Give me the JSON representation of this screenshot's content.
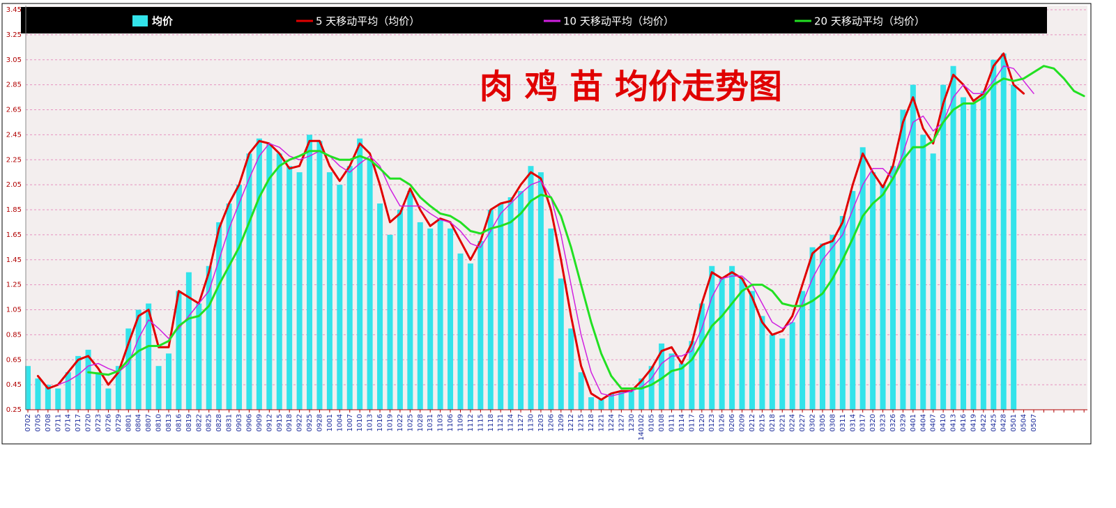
{
  "chart_data": {
    "type": "bar",
    "title": "肉 鸡 苗 均价走势图",
    "legend": "top",
    "grid": true,
    "ylim": [
      0.25,
      3.45
    ],
    "yticks": [
      0.25,
      0.45,
      0.65,
      0.85,
      1.05,
      1.25,
      1.45,
      1.65,
      1.85,
      2.05,
      2.25,
      2.45,
      2.65,
      2.85,
      3.05,
      3.25,
      3.45
    ],
    "categories": [
      "0702",
      "0705",
      "0708",
      "0711",
      "0714",
      "0717",
      "0720",
      "0723",
      "0726",
      "0729",
      "0801",
      "0804",
      "0807",
      "0810",
      "0813",
      "0816",
      "0819",
      "0822",
      "0825",
      "0828",
      "0831",
      "0903",
      "0906",
      "0909",
      "0912",
      "0915",
      "0918",
      "0922",
      "0925",
      "0928",
      "1001",
      "1004",
      "1007",
      "1010",
      "1013",
      "1016",
      "1019",
      "1022",
      "1025",
      "1028",
      "1031",
      "1103",
      "1106",
      "1109",
      "1112",
      "1115",
      "1118",
      "1121",
      "1124",
      "1127",
      "1130",
      "1203",
      "1206",
      "1209",
      "1212",
      "1215",
      "1218",
      "1221",
      "1224",
      "1227",
      "1230",
      "140102",
      "0105",
      "0108",
      "0111",
      "0114",
      "0117",
      "0120",
      "0123",
      "0126",
      "0206",
      "0209",
      "0212",
      "0215",
      "0218",
      "0221",
      "0224",
      "0227",
      "0302",
      "0305",
      "0308",
      "0311",
      "0314",
      "0317",
      "0320",
      "0323",
      "0326",
      "0329",
      "0401",
      "0404",
      "0407",
      "0410",
      "0413",
      "0416",
      "0419",
      "0422",
      "0425",
      "0428",
      "0501",
      "0504",
      "0507",
      null,
      null,
      null,
      null,
      null
    ],
    "series": [
      {
        "name": "均价",
        "type": "bar",
        "color": "#33e3ea",
        "values": [
          0.6,
          0.5,
          0.45,
          0.42,
          0.55,
          0.68,
          0.73,
          0.55,
          0.42,
          0.6,
          0.9,
          1.05,
          1.1,
          0.6,
          0.7,
          1.2,
          1.35,
          1.1,
          1.4,
          1.75,
          1.9,
          2.05,
          2.3,
          2.42,
          2.38,
          2.3,
          2.2,
          2.15,
          2.45,
          2.4,
          2.15,
          2.05,
          2.2,
          2.42,
          2.25,
          1.9,
          1.65,
          1.85,
          2.0,
          1.75,
          1.7,
          1.78,
          1.7,
          1.5,
          1.42,
          1.6,
          1.85,
          1.9,
          1.95,
          2.0,
          2.2,
          2.15,
          1.7,
          1.3,
          0.9,
          0.55,
          0.35,
          0.33,
          0.38,
          0.4,
          0.4,
          0.5,
          0.6,
          0.78,
          0.7,
          0.62,
          0.8,
          1.1,
          1.4,
          1.3,
          1.4,
          1.3,
          1.2,
          1.0,
          0.85,
          0.82,
          0.95,
          1.2,
          1.55,
          1.58,
          1.65,
          1.8,
          2.0,
          2.35,
          2.15,
          2.05,
          2.2,
          2.65,
          2.85,
          2.45,
          2.3,
          2.85,
          3.0,
          2.75,
          2.7,
          2.8,
          3.05,
          3.1,
          2.85,
          null,
          null,
          null,
          null,
          null,
          null,
          null
        ]
      },
      {
        "name": "5 天移动平均（均价）",
        "type": "line",
        "color": "#e00000",
        "width": 3,
        "values": [
          null,
          0.52,
          0.42,
          0.45,
          0.55,
          0.65,
          0.68,
          0.58,
          0.45,
          0.55,
          0.78,
          1.0,
          1.05,
          0.75,
          0.75,
          1.2,
          1.15,
          1.1,
          1.35,
          1.7,
          1.9,
          2.05,
          2.3,
          2.4,
          2.38,
          2.3,
          2.18,
          2.2,
          2.4,
          2.4,
          2.2,
          2.08,
          2.2,
          2.38,
          2.3,
          2.05,
          1.75,
          1.82,
          2.02,
          1.85,
          1.72,
          1.78,
          1.75,
          1.6,
          1.45,
          1.6,
          1.85,
          1.9,
          1.92,
          2.05,
          2.15,
          2.1,
          1.85,
          1.45,
          1.0,
          0.6,
          0.38,
          0.33,
          0.38,
          0.4,
          0.4,
          0.48,
          0.58,
          0.72,
          0.75,
          0.62,
          0.78,
          1.1,
          1.35,
          1.3,
          1.35,
          1.3,
          1.15,
          0.95,
          0.85,
          0.88,
          1.0,
          1.25,
          1.5,
          1.57,
          1.6,
          1.75,
          2.05,
          2.3,
          2.15,
          2.03,
          2.2,
          2.55,
          2.75,
          2.5,
          2.38,
          2.7,
          2.93,
          2.85,
          2.72,
          2.78,
          3.0,
          3.1,
          2.85,
          2.78,
          null,
          null,
          null,
          null,
          null,
          null
        ]
      },
      {
        "name": "10 天移动平均（均价）",
        "type": "line",
        "color": "#d020e0",
        "width": 1.5,
        "values": [
          null,
          null,
          null,
          0.45,
          0.48,
          0.53,
          0.6,
          0.62,
          0.58,
          0.55,
          0.62,
          0.82,
          0.97,
          0.9,
          0.82,
          0.9,
          1.0,
          1.1,
          1.2,
          1.45,
          1.7,
          1.9,
          2.1,
          2.28,
          2.38,
          2.35,
          2.28,
          2.25,
          2.28,
          2.32,
          2.28,
          2.2,
          2.15,
          2.22,
          2.28,
          2.2,
          2.02,
          1.88,
          1.88,
          1.88,
          1.82,
          1.77,
          1.75,
          1.68,
          1.58,
          1.55,
          1.68,
          1.82,
          1.9,
          1.98,
          2.05,
          2.08,
          1.95,
          1.65,
          1.25,
          0.85,
          0.55,
          0.38,
          0.36,
          0.38,
          0.4,
          0.43,
          0.5,
          0.62,
          0.68,
          0.68,
          0.72,
          0.9,
          1.15,
          1.3,
          1.32,
          1.32,
          1.25,
          1.1,
          0.95,
          0.9,
          0.95,
          1.1,
          1.3,
          1.45,
          1.55,
          1.65,
          1.85,
          2.05,
          2.18,
          2.18,
          2.1,
          2.3,
          2.55,
          2.6,
          2.48,
          2.55,
          2.75,
          2.85,
          2.78,
          2.78,
          2.88,
          3.0,
          2.98,
          2.88,
          2.78,
          null,
          null,
          null,
          null,
          null
        ]
      },
      {
        "name": "20 天移动平均（均价）",
        "type": "line",
        "color": "#22e022",
        "width": 3,
        "values": [
          null,
          null,
          null,
          null,
          null,
          null,
          0.55,
          0.54,
          0.53,
          0.56,
          0.65,
          0.72,
          0.76,
          0.76,
          0.8,
          0.92,
          0.98,
          1.0,
          1.08,
          1.25,
          1.4,
          1.55,
          1.75,
          1.95,
          2.1,
          2.2,
          2.25,
          2.28,
          2.32,
          2.32,
          2.28,
          2.25,
          2.25,
          2.28,
          2.25,
          2.18,
          2.1,
          2.1,
          2.05,
          1.95,
          1.88,
          1.82,
          1.8,
          1.75,
          1.68,
          1.66,
          1.7,
          1.72,
          1.75,
          1.82,
          1.92,
          1.97,
          1.95,
          1.8,
          1.55,
          1.25,
          0.95,
          0.7,
          0.52,
          0.42,
          0.42,
          0.42,
          0.45,
          0.5,
          0.56,
          0.58,
          0.65,
          0.78,
          0.92,
          1.0,
          1.1,
          1.2,
          1.25,
          1.25,
          1.2,
          1.1,
          1.08,
          1.08,
          1.12,
          1.18,
          1.3,
          1.45,
          1.62,
          1.8,
          1.9,
          1.97,
          2.1,
          2.25,
          2.35,
          2.35,
          2.4,
          2.55,
          2.65,
          2.7,
          2.7,
          2.75,
          2.85,
          2.9,
          2.88,
          2.9,
          2.95,
          3.0,
          2.98,
          2.9,
          2.8,
          2.76
        ]
      }
    ]
  }
}
